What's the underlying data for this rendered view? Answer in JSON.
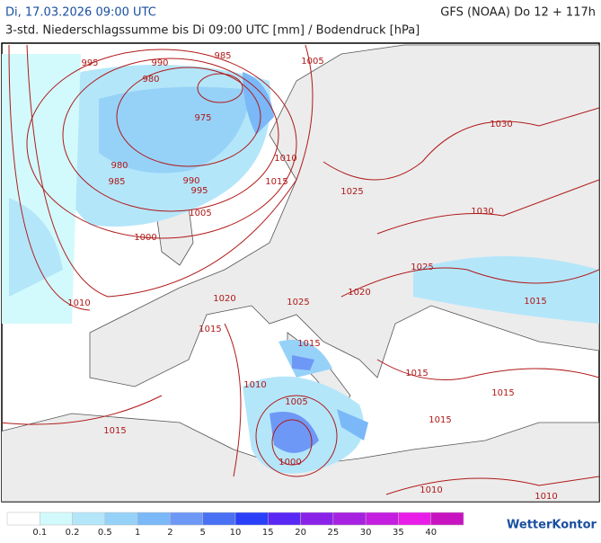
{
  "header": {
    "left": "Di, 17.03.2026 09:00 UTC",
    "right": "GFS (NOAA) Do 12 + 117h",
    "subtitle": "3-std. Niederschlagssumme bis Di 09:00 UTC [mm] / Bodendruck [hPa]"
  },
  "isobar_labels": [
    "995",
    "990",
    "985",
    "1005",
    "980",
    "975",
    "1030",
    "1010",
    "980",
    "985",
    "990",
    "995",
    "1015",
    "1025",
    "1005",
    "1030",
    "1000",
    "1025",
    "1020",
    "1025",
    "1020",
    "1015",
    "1010",
    "1015",
    "1015",
    "1010",
    "1015",
    "1015",
    "1005",
    "1015",
    "1015",
    "1000",
    "1010",
    "1010"
  ],
  "legend": {
    "values": [
      0.1,
      0.2,
      0.5,
      1,
      2,
      5,
      10,
      15,
      20,
      25,
      30,
      35,
      40
    ],
    "colors": [
      "#ffffff",
      "#d2fafc",
      "#b4e6fa",
      "#96d2f8",
      "#7ab8f8",
      "#6e98f6",
      "#4a70f4",
      "#2a40f8",
      "#5a28f4",
      "#8a22e8",
      "#a622e0",
      "#c41ee0",
      "#e81ee8",
      "#c814c0"
    ]
  },
  "logo": "WetterKontor"
}
